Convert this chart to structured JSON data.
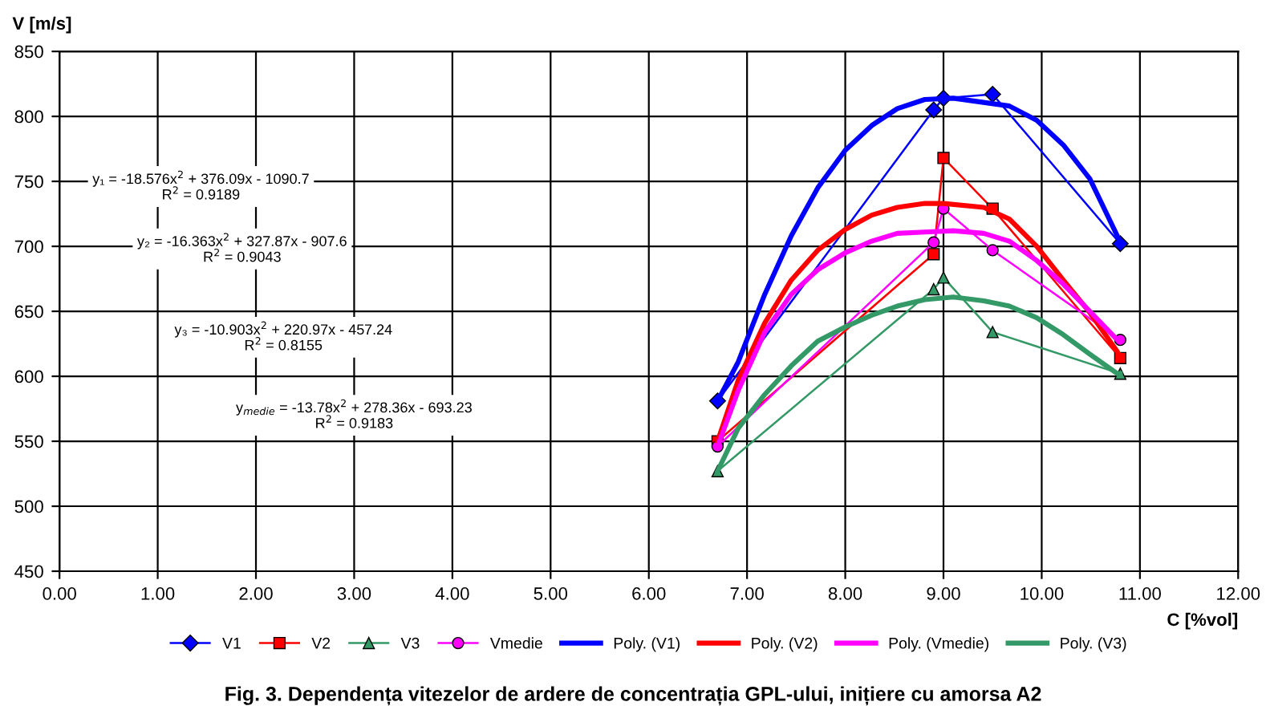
{
  "chart_data": {
    "type": "line",
    "xlabel": "C [%vol]",
    "ylabel": "V [m/s]",
    "xlim": [
      0,
      12
    ],
    "ylim": [
      450,
      850
    ],
    "xticks": [
      {
        "value": 0,
        "label": "0.00"
      },
      {
        "value": 1,
        "label": "1.00"
      },
      {
        "value": 2,
        "label": "2.00"
      },
      {
        "value": 3,
        "label": "3.00"
      },
      {
        "value": 4,
        "label": "4.00"
      },
      {
        "value": 5,
        "label": "5.00"
      },
      {
        "value": 6,
        "label": "6.00"
      },
      {
        "value": 7,
        "label": "7.00"
      },
      {
        "value": 8,
        "label": "8.00"
      },
      {
        "value": 9,
        "label": "9.00"
      },
      {
        "value": 10,
        "label": "10.00"
      },
      {
        "value": 11,
        "label": "11.00"
      },
      {
        "value": 12,
        "label": "12.00"
      }
    ],
    "yticks": [
      450,
      500,
      550,
      600,
      650,
      700,
      750,
      800,
      850
    ],
    "grid": true,
    "legend": "bottom",
    "series": [
      {
        "name": "V1",
        "color": "#0000ff",
        "marker": "diamond",
        "x": [
          6.7,
          8.9,
          9.0,
          9.5,
          10.8
        ],
        "values": [
          581,
          805,
          814,
          817,
          702
        ]
      },
      {
        "name": "V2",
        "color": "#ff0000",
        "marker": "square",
        "x": [
          6.7,
          8.9,
          9.0,
          9.5,
          10.8
        ],
        "values": [
          550,
          694,
          768,
          729,
          614
        ]
      },
      {
        "name": "V3",
        "color": "#339966",
        "marker": "triangle",
        "x": [
          6.7,
          8.9,
          9.0,
          9.5,
          10.8
        ],
        "values": [
          527,
          667,
          676,
          634,
          602
        ]
      },
      {
        "name": "Vmedie",
        "color": "#ff00ff",
        "marker": "circle",
        "x": [
          6.7,
          8.9,
          9.0,
          9.5,
          10.8
        ],
        "values": [
          546,
          703,
          729,
          697,
          628
        ]
      },
      {
        "name": "Poly. (V1)",
        "color": "#0000ff",
        "x": [
          6.7,
          6.91,
          7.18,
          7.45,
          7.72,
          8.0,
          8.27,
          8.53,
          8.81,
          9.1,
          9.67,
          9.95,
          10.22,
          10.49,
          10.77,
          10.8
        ],
        "values": [
          581,
          611,
          663,
          708,
          745,
          774,
          793,
          806,
          813,
          814,
          808,
          797,
          778,
          752,
          708,
          702
        ]
      },
      {
        "name": "Poly. (V2)",
        "color": "#ff0000",
        "x": [
          6.7,
          6.91,
          7.18,
          7.45,
          7.72,
          8.0,
          8.27,
          8.53,
          8.81,
          9.0,
          9.41,
          9.67,
          9.95,
          10.22,
          10.49,
          10.77,
          10.8
        ],
        "values": [
          550,
          597,
          641,
          674,
          697,
          713,
          724,
          730,
          733,
          733,
          730,
          721,
          700,
          674,
          649,
          619,
          614
        ]
      },
      {
        "name": "Poly. (Vmedie)",
        "color": "#ff00ff",
        "x": [
          6.7,
          6.91,
          7.18,
          7.45,
          7.72,
          8.0,
          8.27,
          8.53,
          8.81,
          9.1,
          9.41,
          9.67,
          9.95,
          10.22,
          10.49,
          10.77,
          10.8
        ],
        "values": [
          546,
          589,
          634,
          663,
          682,
          695,
          704,
          710,
          711,
          712,
          710,
          704,
          689,
          671,
          650,
          628,
          628
        ]
      },
      {
        "name": "Poly. (V3)",
        "color": "#339966",
        "x": [
          6.7,
          6.91,
          7.18,
          7.45,
          7.72,
          8.0,
          8.27,
          8.53,
          8.81,
          9.1,
          9.41,
          9.67,
          9.95,
          10.22,
          10.49,
          10.77,
          10.8
        ],
        "values": [
          527,
          560,
          586,
          608,
          627,
          638,
          647,
          654,
          659,
          661,
          658,
          654,
          645,
          632,
          617,
          602,
          602
        ]
      }
    ],
    "annotations": [
      "y₁ = -18.576x$^{2}$ + 376.09x - 1090.7\nR$^{2}$ = 0.9189",
      "y₂ = -16.363x$^{2}$ + 327.87x - 907.6\nR$^{2}$ = 0.9043",
      "y₃ = -10.903x$^{2}$ + 220.97x - 457.24\nR$^{2}$ = 0.8155",
      "y$_{medie}$ = -13.78x$^{2}$ + 278.36x - 693.23\nR$^{2}$ = 0.9183",
      "Fig. 3. Dependența vitezelor de ardere de concentrația GPL-ului, inițiere cu amorsa A2"
    ]
  }
}
